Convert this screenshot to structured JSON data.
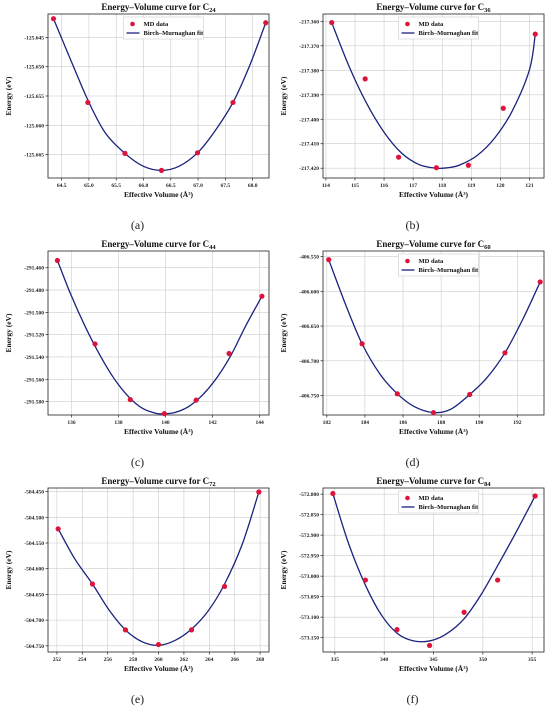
{
  "theme": {
    "marker_color": "#dc143c",
    "fit_color": "#1a237e",
    "grid_color": "#cccccc"
  },
  "charts": [
    {
      "caption": "(a)",
      "chart_data": {
        "type": "scatter",
        "title": "Energy–Volume curve for C",
        "title_sub": "24",
        "xlabel": "Effective Volume (Å³)",
        "ylabel": "Energy (eV)",
        "xlim": [
          64.25,
          68.3
        ],
        "ylim": [
          -125.669,
          -125.641
        ],
        "xticks": [
          64.5,
          65.0,
          65.5,
          66.0,
          66.5,
          67.0,
          67.5,
          68.0
        ],
        "xtick_labels": [
          "64.5",
          "65.0",
          "65.5",
          "66.0",
          "66.5",
          "67.0",
          "67.5",
          "68.0"
        ],
        "yticks": [
          -125.645,
          -125.65,
          -125.655,
          -125.66,
          -125.665
        ],
        "ytick_labels": [
          "-125.645",
          "-125.650",
          "-125.655",
          "-125.660",
          "-125.665"
        ],
        "legend_position": "top-center",
        "grid": true,
        "series": [
          {
            "name": "MD data",
            "kind": "points",
            "x": [
              64.35,
              64.98,
              65.66,
              66.33,
              66.99,
              67.64,
              68.24
            ],
            "y": [
              -125.6418,
              -125.6561,
              -125.6648,
              -125.6677,
              -125.6647,
              -125.6561,
              -125.6425
            ]
          },
          {
            "name": "Birch–Murnaghan fit",
            "kind": "curve",
            "x": [
              64.35,
              64.7,
              65.0,
              65.3,
              65.66,
              66.0,
              66.33,
              66.65,
              66.99,
              67.3,
              67.64,
              67.95,
              68.24
            ],
            "y": [
              -125.6418,
              -125.6496,
              -125.6561,
              -125.6613,
              -125.6648,
              -125.667,
              -125.6677,
              -125.667,
              -125.6647,
              -125.6611,
              -125.6561,
              -125.6497,
              -125.6425
            ]
          }
        ]
      }
    },
    {
      "caption": "(b)",
      "chart_data": {
        "type": "scatter",
        "title": "Energy–Volume curve for C",
        "title_sub": "36",
        "xlabel": "Effective Volume (Å³)",
        "ylabel": "Energy (eV)",
        "xlim": [
          113.9,
          121.5
        ],
        "ylim": [
          -217.424,
          -217.357
        ],
        "xticks": [
          114,
          115,
          116,
          117,
          118,
          119,
          120,
          121
        ],
        "xtick_labels": [
          "114",
          "115",
          "116",
          "117",
          "118",
          "119",
          "120",
          "121"
        ],
        "yticks": [
          -217.36,
          -217.37,
          -217.38,
          -217.39,
          -217.4,
          -217.41,
          -217.42
        ],
        "ytick_labels": [
          "-217.360",
          "-217.370",
          "-217.380",
          "-217.390",
          "-217.400",
          "-217.410",
          "-217.420"
        ],
        "legend_position": "top-center",
        "grid": true,
        "series": [
          {
            "name": "MD data",
            "kind": "points",
            "x": [
              114.2,
              115.35,
              116.5,
              117.8,
              118.9,
              120.1,
              121.2
            ],
            "y": [
              -217.3605,
              -217.3835,
              -217.4155,
              -217.4198,
              -217.4188,
              -217.3955,
              -217.3652
            ]
          },
          {
            "name": "Birch–Murnaghan fit",
            "kind": "curve",
            "x": [
              114.2,
              114.8,
              115.4,
              116.0,
              116.6,
              117.2,
              117.8,
              118.2,
              118.6,
              119.2,
              119.8,
              120.4,
              121.0,
              121.2
            ],
            "y": [
              -217.3605,
              -217.3785,
              -217.3935,
              -217.4053,
              -217.4138,
              -217.4185,
              -217.42,
              -217.4198,
              -217.4187,
              -217.4148,
              -217.4077,
              -217.3968,
              -217.3798,
              -217.3652
            ]
          }
        ]
      }
    },
    {
      "caption": "(c)",
      "chart_data": {
        "type": "scatter",
        "title": "Energy–Volume curve for C",
        "title_sub": "44",
        "xlabel": "Effective Volume (Å³)",
        "ylabel": "Energy (eV)",
        "xlim": [
          135.0,
          144.4
        ],
        "ylim": [
          -291.592,
          -291.445
        ],
        "xticks": [
          136,
          138,
          140,
          142,
          144
        ],
        "xtick_labels": [
          "136",
          "138",
          "140",
          "142",
          "144"
        ],
        "yticks": [
          -291.46,
          -291.48,
          -291.5,
          -291.52,
          -291.54,
          -291.56,
          -291.58
        ],
        "ytick_labels": [
          "-291.460",
          "-291.480",
          "-291.500",
          "-291.520",
          "-291.540",
          "-291.560",
          "-291.580"
        ],
        "legend_position": "none",
        "grid": true,
        "series": [
          {
            "name": "",
            "kind": "points",
            "x": [
              135.4,
              137.0,
              138.5,
              139.95,
              141.3,
              142.7,
              144.1
            ],
            "y": [
              -291.4535,
              -291.5283,
              -291.5782,
              -291.5908,
              -291.5787,
              -291.5369,
              -291.4855
            ]
          },
          {
            "name": "",
            "kind": "curve",
            "x": [
              135.4,
              136.0,
              136.6,
              137.2,
              137.8,
              138.4,
              139.0,
              139.6,
              140.0,
              140.4,
              141.0,
              141.6,
              142.2,
              142.8,
              143.4,
              144.1
            ],
            "y": [
              -291.4535,
              -291.4855,
              -291.5135,
              -291.538,
              -291.559,
              -291.575,
              -291.5858,
              -291.5905,
              -291.5908,
              -291.5898,
              -291.5842,
              -291.5735,
              -291.558,
              -291.5378,
              -291.5125,
              -291.4855
            ]
          }
        ]
      }
    },
    {
      "caption": "(d)",
      "chart_data": {
        "type": "scatter",
        "title": "Energy–Volume curve for C",
        "title_sub": "60",
        "xlabel": "Effective Volume (Å³)",
        "ylabel": "Energy (eV)",
        "xlim": [
          181.8,
          193.4
        ],
        "ylim": [
          -406.778,
          -406.542
        ],
        "xticks": [
          182,
          184,
          186,
          188,
          190,
          192
        ],
        "xtick_labels": [
          "182",
          "184",
          "186",
          "188",
          "190",
          "192"
        ],
        "yticks": [
          -406.55,
          -406.6,
          -406.65,
          -406.7,
          -406.75
        ],
        "ytick_labels": [
          "-406.550",
          "-406.600",
          "-406.650",
          "-406.700",
          "-406.750"
        ],
        "legend_position": "top-center",
        "grid": true,
        "series": [
          {
            "name": "MD data",
            "kind": "points",
            "x": [
              182.1,
              183.85,
              185.7,
              187.6,
              189.5,
              191.35,
              193.2
            ],
            "y": [
              -406.5545,
              -406.6755,
              -406.7475,
              -406.7745,
              -406.7485,
              -406.6885,
              -406.5865
            ]
          },
          {
            "name": "Birch–Murnaghan fit",
            "kind": "curve",
            "x": [
              182.1,
              183.0,
              183.85,
              184.8,
              185.7,
              186.6,
              187.6,
              188.5,
              189.5,
              190.4,
              191.35,
              192.3,
              193.2
            ],
            "y": [
              -406.5545,
              -406.62,
              -406.6755,
              -406.7195,
              -406.7475,
              -406.766,
              -406.7745,
              -406.7698,
              -406.7485,
              -406.7245,
              -406.6885,
              -406.6395,
              -406.5865
            ]
          }
        ]
      }
    },
    {
      "caption": "(e)",
      "chart_data": {
        "type": "scatter",
        "title": "Energy–Volume curve for C",
        "title_sub": "72",
        "xlabel": "Effective Volume (Å³)",
        "ylabel": "Energy (eV)",
        "xlim": [
          251.3,
          268.7
        ],
        "ylim": [
          -504.762,
          -504.443
        ],
        "xticks": [
          252,
          254,
          256,
          258,
          260,
          262,
          264,
          266,
          268
        ],
        "xtick_labels": [
          "252",
          "254",
          "256",
          "258",
          "260",
          "262",
          "264",
          "266",
          "268"
        ],
        "yticks": [
          -504.45,
          -504.5,
          -504.55,
          -504.6,
          -504.65,
          -504.7,
          -504.75
        ],
        "ytick_labels": [
          "-504.450",
          "-504.500",
          "-504.550",
          "-504.600",
          "-504.650",
          "-504.700",
          "-504.750"
        ],
        "legend_position": "none",
        "grid": true,
        "series": [
          {
            "name": "",
            "kind": "points",
            "x": [
              252.1,
              254.8,
              257.4,
              260.0,
              262.6,
              265.2,
              267.9
            ],
            "y": [
              -504.5225,
              -504.6297,
              -504.719,
              -504.7475,
              -504.719,
              -504.6345,
              -504.4508
            ]
          },
          {
            "name": "",
            "kind": "curve",
            "x": [
              252.1,
              253.4,
              254.8,
              256.1,
              257.4,
              258.7,
              260.0,
              261.3,
              262.6,
              263.9,
              265.2,
              266.6,
              267.9
            ],
            "y": [
              -504.5225,
              -504.5805,
              -504.6297,
              -504.68,
              -504.719,
              -504.742,
              -504.749,
              -504.7395,
              -504.7175,
              -504.6825,
              -504.63,
              -504.552,
              -504.4508
            ]
          }
        ]
      }
    },
    {
      "caption": "(f)",
      "chart_data": {
        "type": "scatter",
        "title": "Energy–Volume curve for C",
        "title_sub": "84",
        "xlabel": "Effective Volume (Å³)",
        "ylabel": "Energy (eV)",
        "xlim": [
          333.8,
          356.2
        ],
        "ylim": [
          -573.185,
          -572.785
        ],
        "xticks": [
          335,
          340,
          345,
          350,
          355
        ],
        "xtick_labels": [
          "335",
          "340",
          "345",
          "350",
          "355"
        ],
        "yticks": [
          -572.8,
          -572.85,
          -572.9,
          -572.95,
          -573.0,
          -573.05,
          -573.1,
          -573.15
        ],
        "ytick_labels": [
          "-572.800",
          "-572.850",
          "-572.900",
          "-572.950",
          "-573.000",
          "-573.050",
          "-573.100",
          "-573.150"
        ],
        "legend_position": "top-center",
        "grid": true,
        "series": [
          {
            "name": "MD data",
            "kind": "points",
            "x": [
              334.8,
              338.1,
              341.3,
              344.6,
              348.1,
              351.5,
              355.3
            ],
            "y": [
              -572.7985,
              -573.0095,
              -573.1305,
              -573.169,
              -573.088,
              -573.0095,
              -572.8045
            ]
          },
          {
            "name": "Birch–Murnaghan fit",
            "kind": "curve",
            "x": [
              334.8,
              336.4,
              338.1,
              339.7,
              341.3,
              342.9,
              344.6,
              346.3,
              348.1,
              349.8,
              351.5,
              353.4,
              355.3
            ],
            "y": [
              -572.7985,
              -572.921,
              -573.022,
              -573.094,
              -573.139,
              -573.1575,
              -573.158,
              -573.141,
              -573.104,
              -573.046,
              -572.9745,
              -572.8915,
              -572.8045
            ]
          }
        ]
      }
    }
  ]
}
